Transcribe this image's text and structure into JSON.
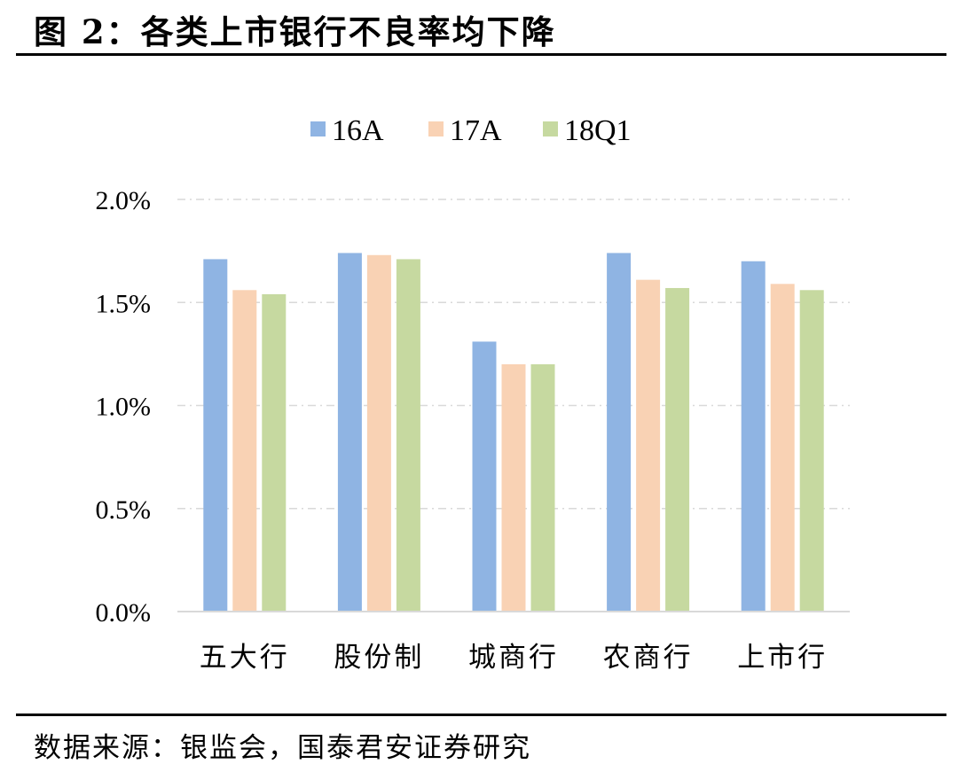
{
  "figure_title": "图 2：各类上市银行不良率均下降",
  "source_note": "数据来源：银监会，国泰君安证券研究",
  "chart_data": {
    "type": "bar",
    "categories": [
      "五大行",
      "股份制",
      "城商行",
      "农商行",
      "上市行"
    ],
    "series": [
      {
        "name": "16A",
        "color": "#8FB4E3",
        "values": [
          1.71,
          1.74,
          1.31,
          1.74,
          1.7
        ]
      },
      {
        "name": "17A",
        "color": "#F9D2B4",
        "values": [
          1.56,
          1.73,
          1.2,
          1.61,
          1.59
        ]
      },
      {
        "name": "18Q1",
        "color": "#C6D9A0",
        "values": [
          1.54,
          1.71,
          1.2,
          1.57,
          1.56
        ]
      }
    ],
    "y_ticks": [
      "0.0%",
      "0.5%",
      "1.0%",
      "1.5%",
      "2.0%"
    ],
    "y_tick_values": [
      0,
      0.5,
      1.0,
      1.5,
      2.0
    ],
    "ylim": [
      0,
      2.0
    ],
    "unit": "%",
    "grid": true,
    "legend_position": "top-center"
  }
}
